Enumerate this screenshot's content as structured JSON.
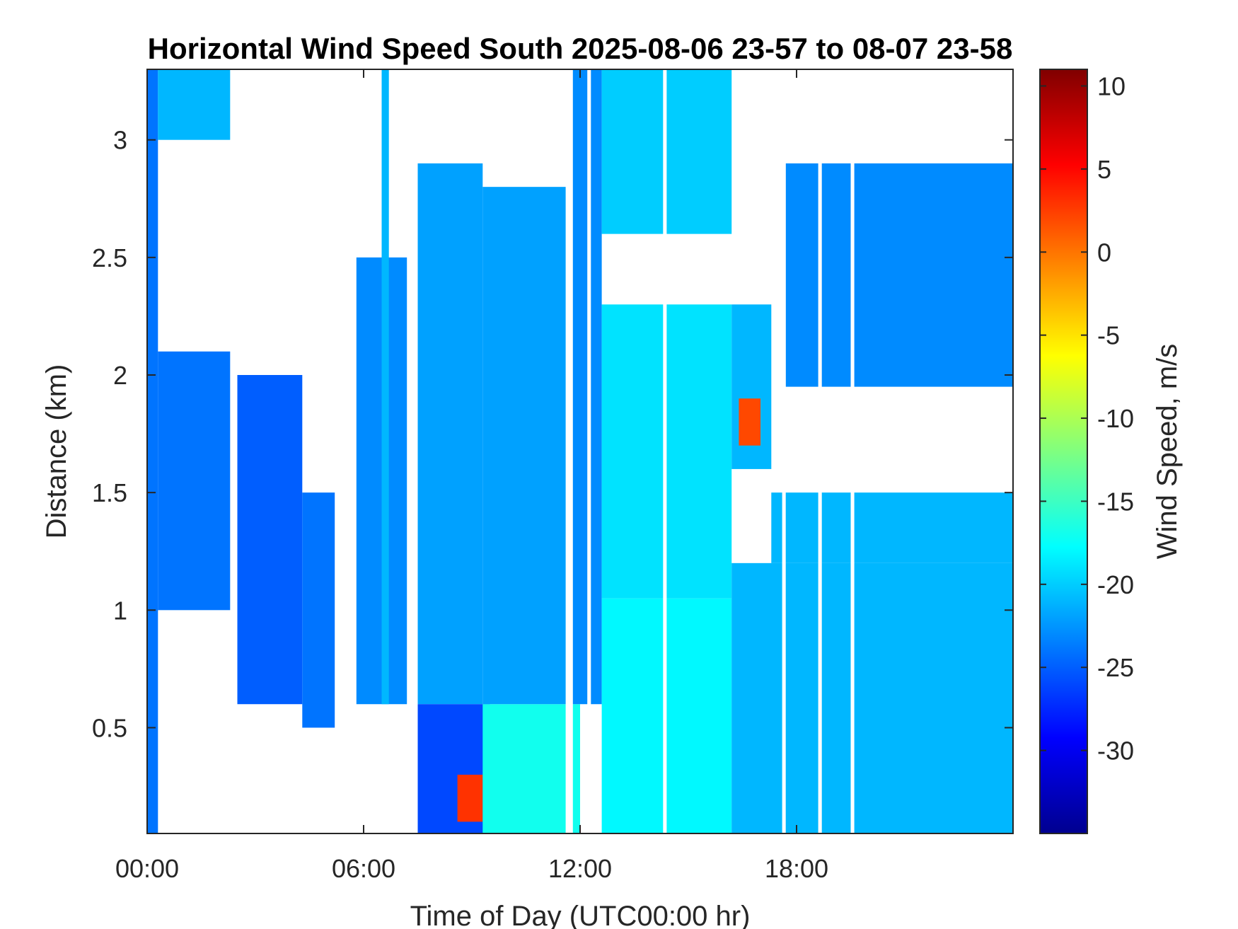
{
  "chart_data": {
    "type": "heatmap",
    "title": "Horizontal Wind Speed South 2025-08-06 23-57 to 08-07 23-58",
    "xlabel": "Time of Day (UTC00:00 hr)",
    "ylabel": "Distance (km)",
    "colorbar_label": "Wind Speed, m/s",
    "colormap": "jet",
    "xlim": [
      0,
      24
    ],
    "ylim": [
      0.05,
      3.3
    ],
    "clim": [
      -35,
      11
    ],
    "x_ticks": [
      {
        "value": 0,
        "label": "00:00"
      },
      {
        "value": 6,
        "label": "06:00"
      },
      {
        "value": 12,
        "label": "12:00"
      },
      {
        "value": 18,
        "label": "18:00"
      }
    ],
    "y_ticks": [
      {
        "value": 0.5,
        "label": "0.5"
      },
      {
        "value": 1,
        "label": "1"
      },
      {
        "value": 1.5,
        "label": "1.5"
      },
      {
        "value": 2,
        "label": "2"
      },
      {
        "value": 2.5,
        "label": "2.5"
      },
      {
        "value": 3,
        "label": "3"
      }
    ],
    "colorbar_ticks": [
      {
        "value": 10,
        "label": "10"
      },
      {
        "value": 5,
        "label": "5"
      },
      {
        "value": 0,
        "label": "0"
      },
      {
        "value": -5,
        "label": "-5"
      },
      {
        "value": -10,
        "label": "-10"
      },
      {
        "value": -15,
        "label": "-15"
      },
      {
        "value": -20,
        "label": "-20"
      },
      {
        "value": -25,
        "label": "-25"
      },
      {
        "value": -30,
        "label": "-30"
      }
    ],
    "data_regions": [
      {
        "x0": 0.0,
        "x1": 0.3,
        "y0": 0.05,
        "y1": 3.3,
        "value": -24
      },
      {
        "x0": 0.3,
        "x1": 2.3,
        "y0": 1.0,
        "y1": 2.1,
        "value": -24
      },
      {
        "x0": 0.3,
        "x1": 2.3,
        "y0": 3.0,
        "y1": 3.3,
        "value": -21
      },
      {
        "x0": 2.5,
        "x1": 4.3,
        "y0": 0.6,
        "y1": 2.0,
        "value": -25
      },
      {
        "x0": 4.3,
        "x1": 5.2,
        "y0": 0.5,
        "y1": 1.5,
        "value": -24
      },
      {
        "x0": 5.8,
        "x1": 7.2,
        "y0": 0.6,
        "y1": 2.5,
        "value": -23
      },
      {
        "x0": 6.5,
        "x1": 6.7,
        "y0": 0.6,
        "y1": 3.3,
        "value": -21
      },
      {
        "x0": 7.5,
        "x1": 9.3,
        "y0": 0.6,
        "y1": 2.9,
        "value": -22
      },
      {
        "x0": 7.5,
        "x1": 9.5,
        "y0": 0.05,
        "y1": 0.6,
        "value": -26
      },
      {
        "x0": 8.6,
        "x1": 9.3,
        "y0": 0.1,
        "y1": 0.3,
        "value": 3
      },
      {
        "x0": 9.3,
        "x1": 12.0,
        "y0": 0.05,
        "y1": 0.6,
        "value": -17
      },
      {
        "x0": 9.3,
        "x1": 11.7,
        "y0": 0.6,
        "y1": 2.8,
        "value": -22
      },
      {
        "x0": 11.7,
        "x1": 12.6,
        "y0": 0.6,
        "y1": 3.3,
        "value": -23
      },
      {
        "x0": 12.6,
        "x1": 16.2,
        "y0": 0.05,
        "y1": 1.05,
        "value": -18
      },
      {
        "x0": 12.6,
        "x1": 16.2,
        "y0": 1.05,
        "y1": 2.3,
        "value": -19
      },
      {
        "x0": 12.6,
        "x1": 16.2,
        "y0": 2.6,
        "y1": 3.3,
        "value": -20
      },
      {
        "x0": 16.2,
        "x1": 17.3,
        "y0": 1.6,
        "y1": 2.3,
        "value": -21
      },
      {
        "x0": 16.2,
        "x1": 24.0,
        "y0": 0.05,
        "y1": 1.2,
        "value": -21
      },
      {
        "x0": 17.3,
        "x1": 24.0,
        "y0": 1.2,
        "y1": 1.5,
        "value": -21
      },
      {
        "x0": 17.7,
        "x1": 24.0,
        "y0": 1.95,
        "y1": 2.9,
        "value": -23
      },
      {
        "x0": 16.4,
        "x1": 17.0,
        "y0": 1.7,
        "y1": 1.9,
        "value": 2
      }
    ],
    "gaps": [
      {
        "x0": 11.6,
        "x1": 11.8
      },
      {
        "x0": 12.2,
        "x1": 12.3
      },
      {
        "x0": 14.3,
        "x1": 14.4
      },
      {
        "x0": 17.6,
        "x1": 17.7
      },
      {
        "x0": 18.6,
        "x1": 18.7
      },
      {
        "x0": 19.5,
        "x1": 19.6
      }
    ]
  }
}
